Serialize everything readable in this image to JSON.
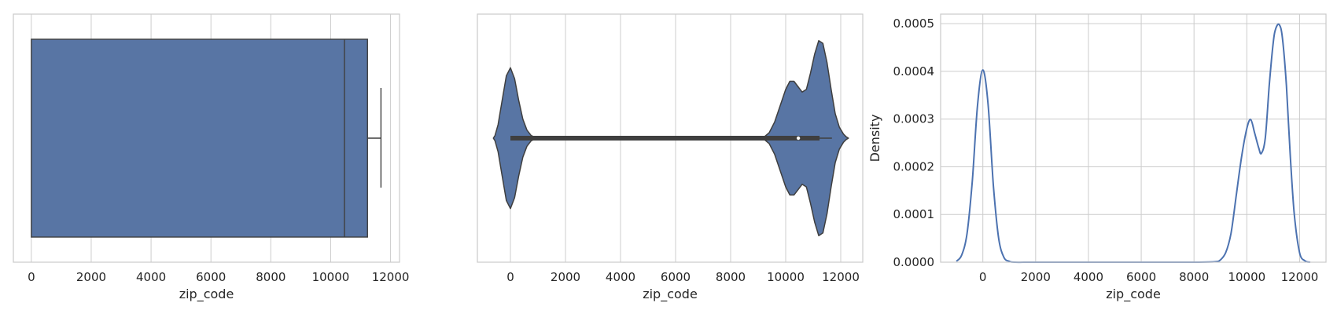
{
  "palette": {
    "fill": "#5875a4",
    "line": "#4c72b0",
    "edge": "#3f3f3f",
    "grid": "#cccccc",
    "text": "#262626",
    "median_dot": "#ffffff"
  },
  "chart_data": [
    {
      "type": "box",
      "orientation": "horizontal",
      "variable": "zip_code",
      "xlabel": "zip_code",
      "ylabel": "",
      "xlim": [
        -600,
        12300
      ],
      "xticks": [
        0,
        2000,
        4000,
        6000,
        8000,
        10000,
        12000
      ],
      "stats": {
        "min": 0,
        "q1": 0,
        "median": 10460,
        "q3": 11230,
        "whisker_high": 11680
      },
      "grid": "vertical",
      "legend": "none"
    },
    {
      "type": "violin",
      "orientation": "horizontal",
      "variable": "zip_code",
      "xlabel": "zip_code",
      "ylabel": "",
      "xlim": [
        -1200,
        12800
      ],
      "xticks": [
        0,
        2000,
        4000,
        6000,
        8000,
        10000,
        12000
      ],
      "density_profile": {
        "x": [
          -620,
          -560,
          -450,
          -300,
          -150,
          0,
          150,
          300,
          450,
          600,
          750,
          900,
          1100,
          1400,
          2000,
          4000,
          6000,
          8000,
          9000,
          9200,
          9400,
          9600,
          9800,
          10000,
          10150,
          10300,
          10450,
          10600,
          10750,
          10900,
          11050,
          11200,
          11350,
          11500,
          11650,
          11800,
          11950,
          12100,
          12200,
          12280
        ],
        "half_width": [
          0.0,
          0.01,
          0.05,
          0.14,
          0.23,
          0.26,
          0.22,
          0.14,
          0.07,
          0.03,
          0.01,
          0.003,
          0.001,
          0.0,
          0.0,
          0.0,
          0.0,
          0.0,
          0.0,
          0.003,
          0.02,
          0.06,
          0.12,
          0.18,
          0.21,
          0.21,
          0.19,
          0.17,
          0.18,
          0.24,
          0.31,
          0.36,
          0.35,
          0.28,
          0.18,
          0.09,
          0.04,
          0.015,
          0.005,
          0.0
        ]
      },
      "inner_box": {
        "whisker_low": 0,
        "q1": 0,
        "median": 10460,
        "q3": 11230,
        "whisker_high": 11680
      },
      "grid": "vertical",
      "legend": "none"
    },
    {
      "type": "line",
      "variable": "zip_code",
      "xlabel": "zip_code",
      "ylabel": "Density",
      "xlim": [
        -1600,
        13000
      ],
      "ylim": [
        0,
        0.00052
      ],
      "xticks": [
        0,
        2000,
        4000,
        6000,
        8000,
        10000,
        12000
      ],
      "yticks": [
        0.0,
        0.0001,
        0.0002,
        0.0003,
        0.0004,
        0.0005
      ],
      "ytick_labels": [
        "0.0000",
        "0.0001",
        "0.0002",
        "0.0003",
        "0.0004",
        "0.0005"
      ],
      "series": [
        {
          "x": [
            -1000,
            -800,
            -600,
            -400,
            -200,
            0,
            200,
            400,
            600,
            800,
            1000,
            1200,
            2000,
            4000,
            6000,
            8000,
            8800,
            9000,
            9200,
            9400,
            9600,
            9800,
            10000,
            10150,
            10300,
            10450,
            10550,
            10700,
            10850,
            11000,
            11100,
            11230,
            11350,
            11500,
            11650,
            11800,
            12000,
            12200,
            12400
          ],
          "y": [
            2e-06,
            1.5e-05,
            6e-05,
            0.00017,
            0.00033,
            0.000403,
            0.00033,
            0.00016,
            5e-05,
            1e-05,
            2e-06,
            0.0,
            0.0,
            0.0,
            0.0,
            0.0,
            1e-06,
            5e-06,
            2e-05,
            6e-05,
            0.00014,
            0.00022,
            0.00028,
            0.000299,
            0.00027,
            0.00024,
            0.000228,
            0.00026,
            0.00037,
            0.00046,
            0.00049,
            0.000498,
            0.00047,
            0.00037,
            0.00022,
            0.0001,
            2e-05,
            3e-06,
            0.0
          ]
        }
      ],
      "grid": "both",
      "legend": "none"
    }
  ]
}
